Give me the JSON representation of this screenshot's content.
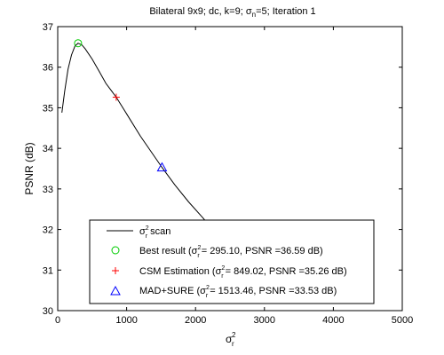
{
  "chart_data": {
    "type": "line",
    "title_parts": [
      "Bilateral 9x9; dc, k=9; σ",
      "n",
      "=5; Iteration 1"
    ],
    "xlabel": {
      "base": "σ",
      "sup": "2",
      "sub": "r"
    },
    "ylabel": "PSNR (dB)",
    "xlim": [
      0,
      5000
    ],
    "ylim": [
      30,
      37
    ],
    "xticks": [
      0,
      1000,
      2000,
      3000,
      4000,
      5000
    ],
    "yticks": [
      30,
      31,
      32,
      33,
      34,
      35,
      36,
      37
    ],
    "grid": false,
    "legend_position": "lower-left",
    "series": [
      {
        "name_parts": [
          "σ",
          "2",
          "r",
          " scan"
        ],
        "kind": "line",
        "color": "#000000",
        "x": [
          60,
          100,
          150,
          200,
          250,
          295.1,
          350,
          400,
          500,
          600,
          700,
          849.02,
          1000,
          1200,
          1513.46,
          1700,
          1900,
          2100,
          2200
        ],
        "y": [
          34.88,
          35.4,
          35.95,
          36.3,
          36.52,
          36.59,
          36.55,
          36.45,
          36.2,
          35.9,
          35.6,
          35.26,
          34.85,
          34.3,
          33.53,
          33.1,
          32.68,
          32.3,
          32.1
        ]
      },
      {
        "name_parts": [
          "Best result (σ",
          "2",
          "r",
          "= 295.10, PSNR =36.59 dB)"
        ],
        "kind": "marker",
        "marker": "circle",
        "color": "#00cc00",
        "x": [
          295.1
        ],
        "y": [
          36.59
        ]
      },
      {
        "name_parts": [
          "CSM Estimation (σ",
          "2",
          "r",
          "= 849.02, PSNR =35.26 dB)"
        ],
        "kind": "marker",
        "marker": "plus",
        "color": "#ff0000",
        "x": [
          849.02
        ],
        "y": [
          35.26
        ]
      },
      {
        "name_parts": [
          "MAD+SURE (σ",
          "2",
          "r",
          "= 1513.46, PSNR =33.53 dB)"
        ],
        "kind": "marker",
        "marker": "triangle",
        "color": "#0000ff",
        "x": [
          1513.46
        ],
        "y": [
          33.53
        ]
      }
    ]
  }
}
